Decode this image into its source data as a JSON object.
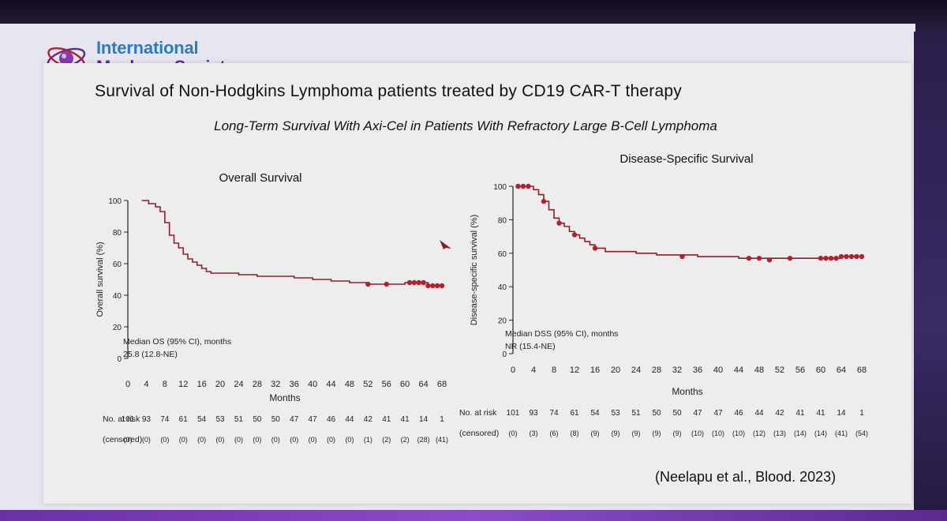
{
  "slide": {
    "logo_line1": "International",
    "logo_line2": "Myeloma Society",
    "title": "Survival of Non-Hodgkins Lymphoma patients treated by CD19 CAR-T therapy",
    "subtitle": "Long-Term Survival With Axi-Cel in Patients With Refractory Large B-Cell Lymphoma",
    "citation": "(Neelapu et al., Blood. 2023)"
  },
  "colors": {
    "curve": "#8b1f2a",
    "marker": "#b0212e",
    "logo_blue": "#2b7dbf",
    "logo_purple": "#5a2d8a"
  },
  "chart_data": [
    {
      "type": "line",
      "title": "Overall Survival",
      "xlabel": "Months",
      "ylabel": "Overall survival (%)",
      "xlim": [
        0,
        68
      ],
      "ylim": [
        0,
        100
      ],
      "xticks": [
        0,
        4,
        8,
        12,
        16,
        20,
        24,
        28,
        32,
        36,
        40,
        44,
        48,
        52,
        56,
        60,
        64,
        68
      ],
      "yticks": [
        0,
        20,
        40,
        60,
        80,
        100
      ],
      "annotation_line1": "Median OS (95% CI), months",
      "annotation_line2": "25.8 (12.8-NE)",
      "series": [
        {
          "name": "Axi-Cel OS",
          "x": [
            3,
            4.5,
            6,
            7,
            8,
            9,
            10,
            11,
            12,
            13,
            14,
            15,
            16,
            17,
            18,
            20,
            24,
            28,
            32,
            36,
            40,
            44,
            48,
            52,
            56,
            60,
            62,
            64,
            65,
            66,
            68
          ],
          "y": [
            100,
            98,
            96,
            93,
            86,
            78,
            73,
            70,
            66,
            63,
            61,
            59,
            57,
            55,
            54,
            54,
            53,
            52,
            52,
            51,
            50,
            49,
            48,
            47,
            47,
            48,
            48,
            48,
            46,
            46,
            46
          ]
        }
      ],
      "censor_x": [
        52,
        56,
        61,
        62,
        63,
        64,
        65,
        66,
        67,
        68
      ],
      "censor_y": [
        47,
        47,
        48,
        48,
        48,
        48,
        46,
        46,
        46,
        46
      ],
      "risk_label": "No. at risk",
      "censored_label": "(censored)",
      "at_risk": [
        "101",
        "93",
        "74",
        "61",
        "54",
        "53",
        "51",
        "50",
        "50",
        "47",
        "47",
        "46",
        "44",
        "42",
        "41",
        "41",
        "14",
        "1"
      ],
      "censored": [
        "(0)",
        "(0)",
        "(0)",
        "(0)",
        "(0)",
        "(0)",
        "(0)",
        "(0)",
        "(0)",
        "(0)",
        "(0)",
        "(0)",
        "(0)",
        "(1)",
        "(2)",
        "(2)",
        "(28)",
        "(41)"
      ]
    },
    {
      "type": "line",
      "title": "Disease-Specific Survival",
      "xlabel": "Months",
      "ylabel": "Disease-specific survival (%)",
      "xlim": [
        0,
        68
      ],
      "ylim": [
        0,
        100
      ],
      "xticks": [
        0,
        4,
        8,
        12,
        16,
        20,
        24,
        28,
        32,
        36,
        40,
        44,
        48,
        52,
        56,
        60,
        64,
        68
      ],
      "yticks": [
        0,
        20,
        40,
        60,
        80,
        100
      ],
      "annotation_line1": "Median DSS (95% CI), months",
      "annotation_line2": "NR (15.4-NE)",
      "series": [
        {
          "name": "Axi-Cel DSS",
          "x": [
            1,
            2,
            3,
            4,
            5,
            6,
            7,
            8,
            9,
            10,
            11,
            12,
            13,
            14,
            15,
            16,
            18,
            20,
            24,
            28,
            32,
            36,
            40,
            44,
            48,
            52,
            56,
            60,
            64,
            68
          ],
          "y": [
            100,
            100,
            100,
            98,
            95,
            91,
            86,
            81,
            78,
            76,
            73,
            71,
            69,
            67,
            65,
            63,
            61,
            61,
            60,
            59,
            59,
            58,
            58,
            57,
            57,
            57,
            57,
            57,
            58,
            58
          ]
        }
      ],
      "censor_x": [
        1,
        2,
        3,
        6,
        9,
        12,
        16,
        33,
        46,
        48,
        50,
        54,
        60,
        61,
        62,
        63,
        64,
        65,
        66,
        67,
        68
      ],
      "censor_y": [
        100,
        100,
        100,
        91,
        78,
        71,
        63,
        58,
        57,
        57,
        56,
        57,
        57,
        57,
        57,
        57,
        58,
        58,
        58,
        58,
        58
      ],
      "risk_label": "No. at risk",
      "censored_label": "(censored)",
      "at_risk": [
        "101",
        "93",
        "74",
        "61",
        "54",
        "53",
        "51",
        "50",
        "50",
        "47",
        "47",
        "46",
        "44",
        "42",
        "41",
        "41",
        "14",
        "1"
      ],
      "censored": [
        "(0)",
        "(3)",
        "(6)",
        "(8)",
        "(9)",
        "(9)",
        "(9)",
        "(9)",
        "(9)",
        "(10)",
        "(10)",
        "(10)",
        "(12)",
        "(13)",
        "(14)",
        "(14)",
        "(41)",
        "(54)"
      ]
    }
  ]
}
